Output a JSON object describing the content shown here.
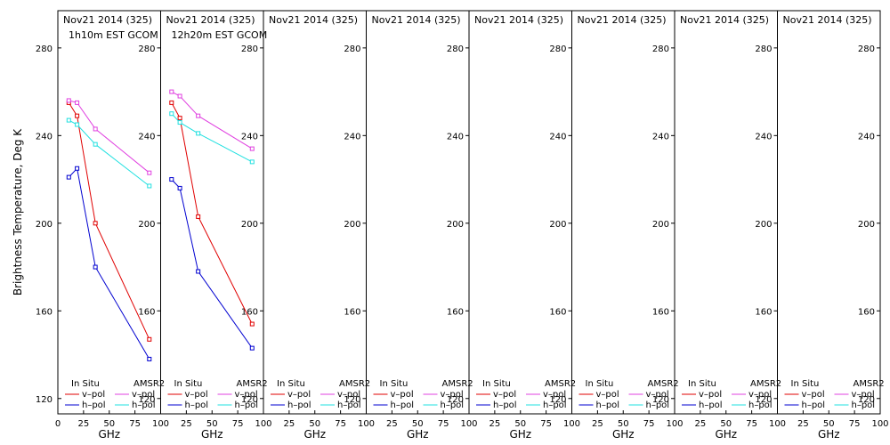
{
  "chart_data": {
    "type": "line",
    "ylabel": "Brightness Temperature, Deg K",
    "xlabel": "GHz",
    "ylim": [
      113,
      297
    ],
    "xlim": [
      0,
      100
    ],
    "yticks": [
      120,
      160,
      200,
      240,
      280
    ],
    "xticks": [
      0,
      25,
      50,
      75,
      100
    ],
    "legend_position": "bottom",
    "legend_headers": {
      "in_situ": "In Situ",
      "amsr2": "AMSR2"
    },
    "series_labels": {
      "v": "v–pol",
      "h": "h–pol"
    },
    "colors": {
      "in_situ_v": "#e00000",
      "in_situ_h": "#0000d0",
      "amsr2_v": "#e040e0",
      "amsr2_h": "#20e0e0"
    },
    "panels": [
      {
        "title": "Nov21 2014 (325)",
        "subtitle": "1h10m EST GCOM",
        "series": [
          {
            "name": "In Situ v–pol",
            "x": [
              10.65,
              18.7,
              36.5,
              89.0
            ],
            "y": [
              255,
              249,
              200,
              147
            ]
          },
          {
            "name": "In Situ h–pol",
            "x": [
              10.65,
              18.7,
              36.5,
              89.0
            ],
            "y": [
              221,
              225,
              180,
              138
            ]
          },
          {
            "name": "AMSR2 v–pol",
            "x": [
              10.65,
              18.7,
              36.5,
              89.0
            ],
            "y": [
              256,
              255,
              243,
              223
            ]
          },
          {
            "name": "AMSR2 h–pol",
            "x": [
              10.65,
              18.7,
              36.5,
              89.0
            ],
            "y": [
              247,
              245,
              236,
              217
            ]
          }
        ]
      },
      {
        "title": "Nov21 2014 (325)",
        "subtitle": "12h20m EST GCOM",
        "series": [
          {
            "name": "In Situ v–pol",
            "x": [
              10.65,
              18.7,
              36.5,
              89.0
            ],
            "y": [
              255,
              248,
              203,
              154
            ]
          },
          {
            "name": "In Situ h–pol",
            "x": [
              10.65,
              18.7,
              36.5,
              89.0
            ],
            "y": [
              220,
              216,
              178,
              143
            ]
          },
          {
            "name": "AMSR2 v–pol",
            "x": [
              10.65,
              18.7,
              36.5,
              89.0
            ],
            "y": [
              260,
              258,
              249,
              234
            ]
          },
          {
            "name": "AMSR2 h–pol",
            "x": [
              10.65,
              18.7,
              36.5,
              89.0
            ],
            "y": [
              250,
              246,
              241,
              228
            ]
          }
        ]
      },
      {
        "title": "Nov21 2014 (325)",
        "subtitle": "",
        "series": []
      },
      {
        "title": "Nov21 2014 (325)",
        "subtitle": "",
        "series": []
      },
      {
        "title": "Nov21 2014 (325)",
        "subtitle": "",
        "series": []
      },
      {
        "title": "Nov21 2014 (325)",
        "subtitle": "",
        "series": []
      },
      {
        "title": "Nov21 2014 (325)",
        "subtitle": "",
        "series": []
      },
      {
        "title": "Nov21 2014 (325)",
        "subtitle": "",
        "series": []
      }
    ]
  }
}
